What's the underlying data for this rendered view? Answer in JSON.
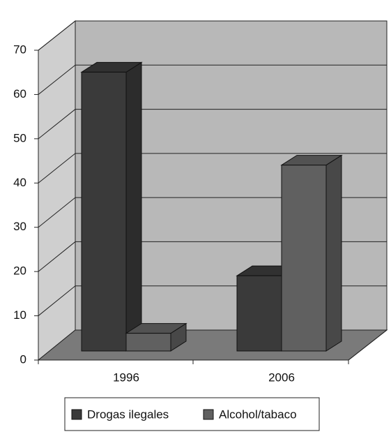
{
  "chart_data": {
    "type": "bar3d",
    "categories": [
      "1996",
      "2006"
    ],
    "series": [
      {
        "name": "Drogas ilegales",
        "color": "#3a3a3a",
        "values": [
          63,
          17
        ]
      },
      {
        "name": "Alcohol/tabaco",
        "color": "#606060",
        "values": [
          4,
          42
        ]
      }
    ],
    "ylim": [
      0,
      70
    ],
    "yticks": [
      0,
      10,
      20,
      30,
      40,
      50,
      60,
      70
    ],
    "grid": true
  }
}
